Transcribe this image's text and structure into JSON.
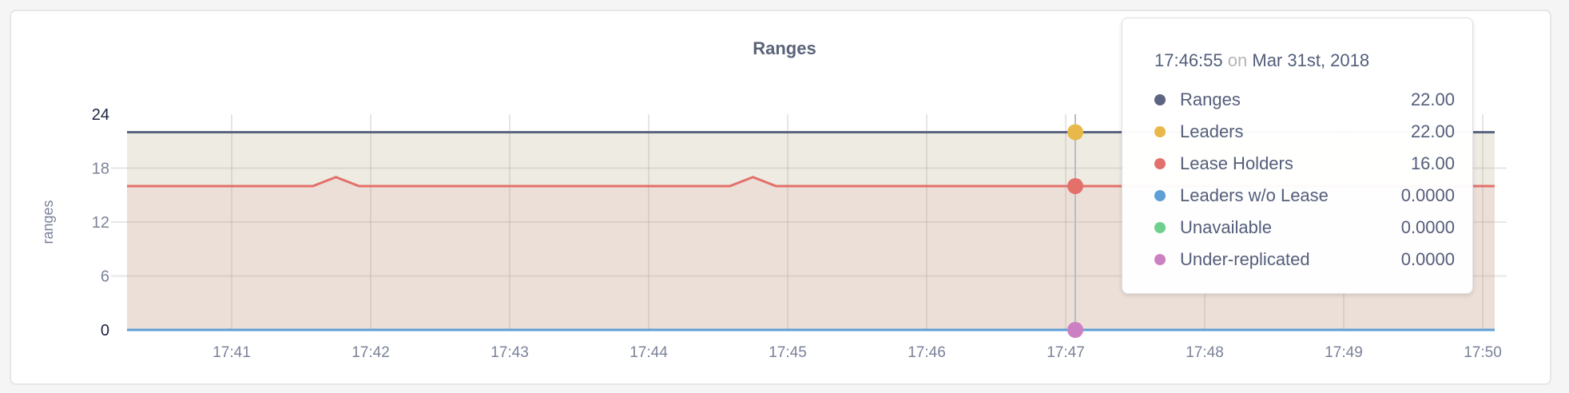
{
  "chart_data": {
    "type": "area",
    "title": "Ranges",
    "ylabel": "ranges",
    "xlabel": "",
    "ylim": [
      0,
      24
    ],
    "yticks": [
      "0",
      "6",
      "12",
      "18",
      "24"
    ],
    "xlim": [
      "17:40:15",
      "17:50:05"
    ],
    "xticks": [
      "17:41",
      "17:42",
      "17:43",
      "17:44",
      "17:45",
      "17:46",
      "17:47",
      "17:48",
      "17:49",
      "17:50"
    ],
    "grid": true,
    "series": [
      {
        "name": "Ranges",
        "color": "#5b6480",
        "fill": null,
        "points": [
          [
            "17:40:15",
            22
          ],
          [
            "17:50:05",
            22
          ]
        ]
      },
      {
        "name": "Leaders",
        "color": "#e8b94a",
        "fill": "#eeebe3",
        "points": [
          [
            "17:40:15",
            22
          ],
          [
            "17:50:05",
            22
          ]
        ]
      },
      {
        "name": "Lease Holders",
        "color": "#e3706a",
        "fill": "#ecdfd8",
        "points": [
          [
            "17:40:15",
            16
          ],
          [
            "17:41:35",
            16
          ],
          [
            "17:41:45",
            17
          ],
          [
            "17:41:55",
            16
          ],
          [
            "17:44:35",
            16
          ],
          [
            "17:44:45",
            17
          ],
          [
            "17:44:55",
            16
          ],
          [
            "17:50:05",
            16
          ]
        ]
      },
      {
        "name": "Leaders w/o Lease",
        "color": "#5e9fd6",
        "fill": null,
        "points": [
          [
            "17:40:15",
            0
          ],
          [
            "17:50:05",
            0
          ]
        ]
      },
      {
        "name": "Unavailable",
        "color": "#6fd08e",
        "fill": null,
        "points": [
          [
            "17:40:15",
            0
          ],
          [
            "17:50:05",
            0
          ]
        ]
      },
      {
        "name": "Under-replicated",
        "color": "#cc80c4",
        "fill": null,
        "points": [
          [
            "17:40:15",
            0
          ],
          [
            "17:50:05",
            0
          ]
        ]
      }
    ],
    "hover": {
      "time": "17:46:55"
    }
  },
  "tooltip": {
    "time": "17:46:55",
    "on": "on",
    "date": "Mar 31st, 2018",
    "rows": [
      {
        "label": "Ranges",
        "value": "22.00",
        "color": "#5b6480"
      },
      {
        "label": "Leaders",
        "value": "22.00",
        "color": "#e8b94a"
      },
      {
        "label": "Lease Holders",
        "value": "16.00",
        "color": "#e3706a"
      },
      {
        "label": "Leaders w/o Lease",
        "value": "0.0000",
        "color": "#5e9fd6"
      },
      {
        "label": "Unavailable",
        "value": "0.0000",
        "color": "#6fd08e"
      },
      {
        "label": "Under-replicated",
        "value": "0.0000",
        "color": "#cc80c4"
      }
    ]
  }
}
